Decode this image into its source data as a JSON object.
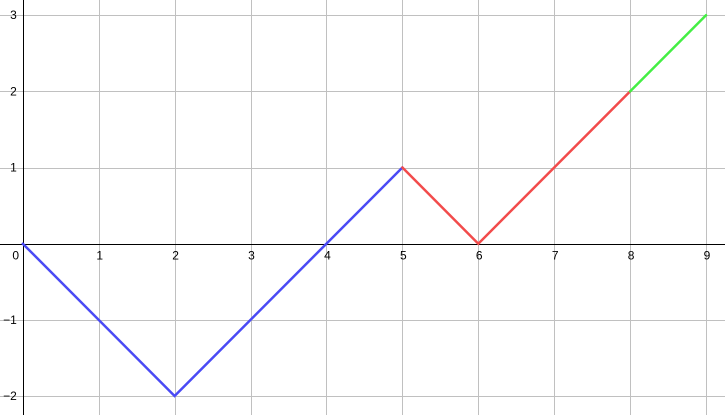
{
  "chart_data": {
    "type": "line",
    "title": "",
    "xlabel": "",
    "ylabel": "",
    "xlim": [
      -0.3,
      9.25
    ],
    "ylim": [
      -2.25,
      3.2
    ],
    "grid": true,
    "x_ticks": [
      "0",
      "1",
      "2",
      "3",
      "4",
      "5",
      "6",
      "7",
      "8",
      "9"
    ],
    "y_ticks": [
      "−2",
      "−1",
      "1",
      "2",
      "3"
    ],
    "series": [
      {
        "color": "#4a4af5",
        "points": [
          [
            0,
            0
          ],
          [
            2,
            -2
          ],
          [
            5,
            1
          ]
        ]
      },
      {
        "color": "#f24b4b",
        "points": [
          [
            5,
            1
          ],
          [
            6,
            0
          ],
          [
            8,
            2
          ]
        ]
      },
      {
        "color": "#44ee44",
        "points": [
          [
            8,
            2
          ],
          [
            9,
            3
          ]
        ]
      }
    ]
  }
}
